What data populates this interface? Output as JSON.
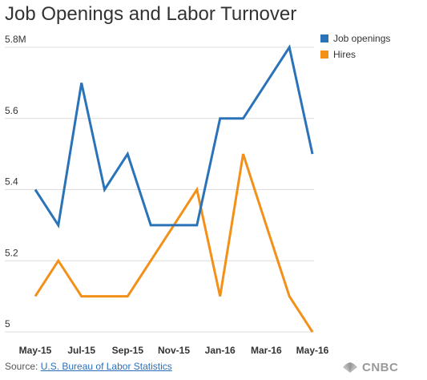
{
  "chart_data": {
    "type": "line",
    "title": "Job Openings and Labor Turnover",
    "xlabel": "",
    "ylabel": "",
    "x": [
      "May-15",
      "Jun-15",
      "Jul-15",
      "Aug-15",
      "Sep-15",
      "Oct-15",
      "Nov-15",
      "Dec-15",
      "Jan-16",
      "Feb-16",
      "Mar-16",
      "Apr-16",
      "May-16"
    ],
    "x_tick_labels": [
      "May-15",
      "Jul-15",
      "Sep-15",
      "Nov-15",
      "Jan-16",
      "Mar-16",
      "May-16"
    ],
    "y_tick_labels": [
      "5.8M",
      "5.6",
      "5.4",
      "5.2",
      "5"
    ],
    "y_ticks": [
      5.8,
      5.6,
      5.4,
      5.2,
      5.0
    ],
    "ylim": [
      5.0,
      5.8
    ],
    "grid": "horizontal",
    "legend_position": "top-right",
    "series": [
      {
        "name": "Job openings",
        "color": "#2a73b8",
        "values": [
          5.4,
          5.3,
          5.7,
          5.4,
          5.5,
          5.3,
          5.3,
          5.3,
          5.6,
          5.6,
          5.7,
          5.8,
          5.5
        ]
      },
      {
        "name": "Hires",
        "color": "#f39019",
        "values": [
          5.1,
          5.2,
          5.1,
          5.1,
          5.1,
          5.2,
          5.3,
          5.4,
          5.1,
          5.5,
          5.3,
          5.1,
          5.0
        ]
      }
    ]
  },
  "footer": {
    "source_label": "Source:",
    "source_link": "U.S. Bureau of Labor Statistics"
  },
  "logo": {
    "text": "CNBC",
    "icon": "peacock-icon"
  }
}
